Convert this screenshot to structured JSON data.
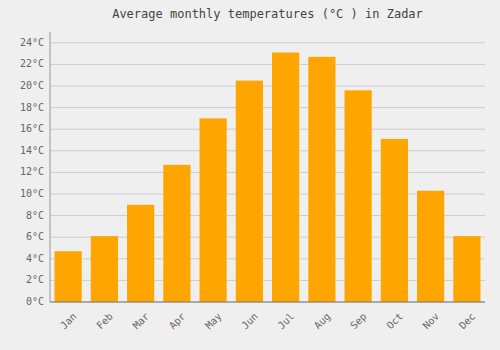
{
  "chart_data": {
    "type": "bar",
    "title": "Average monthly temperatures (°C ) in Zadar",
    "categories": [
      "Jan",
      "Feb",
      "Mar",
      "Apr",
      "May",
      "Jun",
      "Jul",
      "Aug",
      "Sep",
      "Oct",
      "Nov",
      "Dec"
    ],
    "values": [
      4.7,
      6.1,
      9.0,
      12.7,
      17.0,
      20.5,
      23.1,
      22.7,
      19.6,
      15.1,
      10.3,
      6.1
    ],
    "color": "#FFA500",
    "ylim": [
      0,
      25
    ],
    "yticks": [
      {
        "value": 0,
        "label": "0°C"
      },
      {
        "value": 2,
        "label": "2°C"
      },
      {
        "value": 4,
        "label": "4°C"
      },
      {
        "value": 6,
        "label": "6°C"
      },
      {
        "value": 8,
        "label": "8°C"
      },
      {
        "value": 10,
        "label": "10°C"
      },
      {
        "value": 12,
        "label": "12°C"
      },
      {
        "value": 14,
        "label": "14°C"
      },
      {
        "value": 16,
        "label": "16°C"
      },
      {
        "value": 18,
        "label": "18°C"
      },
      {
        "value": 20,
        "label": "20°C"
      },
      {
        "value": 22,
        "label": "22°C"
      },
      {
        "value": 24,
        "label": "24°C"
      }
    ],
    "grid": true
  }
}
